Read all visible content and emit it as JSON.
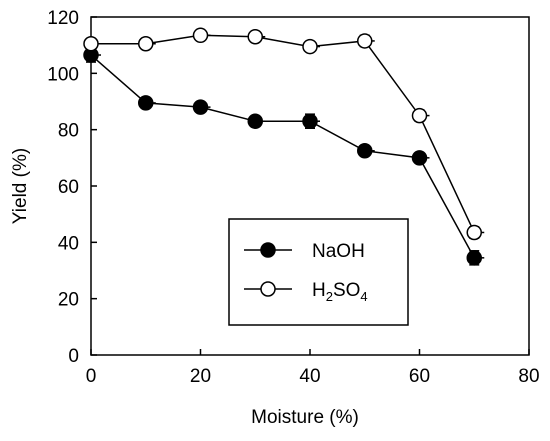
{
  "chart_data": {
    "type": "line",
    "xlabel": "Moisture (%)",
    "ylabel": "Yield (%)",
    "xlim": [
      0,
      80
    ],
    "ylim": [
      0,
      120
    ],
    "xticks": [
      0,
      20,
      40,
      60,
      80
    ],
    "yticks": [
      0,
      20,
      40,
      60,
      80,
      100,
      120
    ],
    "grid": false,
    "legend_position": "bottom-center",
    "x": [
      0,
      10,
      20,
      30,
      40,
      50,
      60,
      70
    ],
    "series": [
      {
        "name": "NaOH",
        "marker": "filled-circle",
        "color": "#000000",
        "values": [
          106.5,
          89.5,
          88,
          83,
          83,
          72.5,
          70,
          34.5
        ],
        "errors": [
          2.5,
          1.5,
          1.5,
          1.5,
          2.5,
          1.5,
          1.5,
          2.5
        ]
      },
      {
        "name": "H2SO4",
        "label_base": "H",
        "label_sub1": "2",
        "label_mid": "SO",
        "label_sub2": "4",
        "marker": "open-circle",
        "color": "#000000",
        "values": [
          110.5,
          110.5,
          113.5,
          113,
          109.5,
          111.5,
          85,
          43.5
        ],
        "errors": [
          1.5,
          1.5,
          1.5,
          1.5,
          1.5,
          2,
          2,
          2
        ]
      }
    ]
  }
}
